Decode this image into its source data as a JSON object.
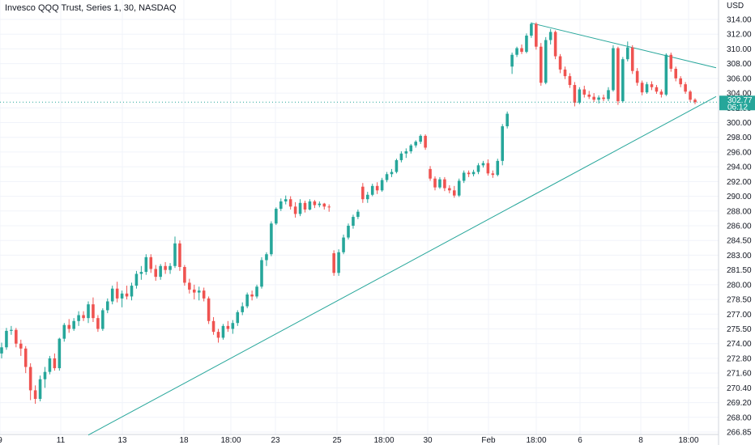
{
  "chart_data": {
    "type": "candlestick",
    "title": "Invesco QQQ Trust, Series 1, 30, NASDAQ",
    "currency": "USD",
    "colors": {
      "up": "#26a69a",
      "down": "#ef5350",
      "trendline": "#26a69a",
      "price_badge": "#26a69a",
      "grid": "#f0f3fa"
    },
    "last_price": {
      "value": "302.77",
      "countdown": "06:12",
      "price": 302.77
    },
    "x_ticks": [
      "9",
      "11",
      "13",
      "18",
      "18:00",
      "23",
      "25",
      "18:00",
      "30",
      "Feb",
      "18:00",
      "6",
      "8",
      "18:00"
    ],
    "y_ticks": [
      "266.85",
      "268.00",
      "269.20",
      "270.40",
      "271.60",
      "272.80",
      "274.00",
      "275.50",
      "277.00",
      "278.50",
      "280.00",
      "281.50",
      "283.00",
      "284.50",
      "286.00",
      "288.00",
      "290.00",
      "292.00",
      "294.00",
      "296.00",
      "298.00",
      "300.00",
      "302.00",
      "304.00",
      "306.00",
      "308.00",
      "310.00",
      "312.00",
      "314.00"
    ],
    "y_tick_values": [
      266.85,
      268.0,
      269.2,
      270.4,
      271.6,
      272.8,
      274.0,
      275.5,
      277.0,
      278.5,
      280.0,
      281.5,
      283.0,
      284.5,
      286.0,
      288.0,
      290.0,
      292.0,
      294.0,
      296.0,
      298.0,
      300.0,
      302.0,
      304.0,
      306.0,
      308.0,
      310.0,
      312.0,
      314.0
    ],
    "trendlines": [
      {
        "name": "support",
        "start": {
          "bar": 18,
          "price": 266.6
        },
        "end": {
          "bar": 148,
          "price": 303.4
        }
      },
      {
        "name": "resistance",
        "start": {
          "bar": 110,
          "price": 313.5
        },
        "end": {
          "bar": 148,
          "price": 307.5
        }
      }
    ],
    "candles": [
      [
        273.2,
        274.1,
        272.8,
        273.7
      ],
      [
        273.7,
        275.6,
        273.5,
        275.3
      ],
      [
        275.3,
        275.8,
        274.9,
        275.4
      ],
      [
        275.4,
        275.6,
        273.7,
        274.0
      ],
      [
        274.0,
        274.4,
        273.0,
        273.6
      ],
      [
        273.6,
        273.8,
        271.6,
        272.1
      ],
      [
        272.1,
        272.4,
        269.4,
        270.2
      ],
      [
        270.2,
        270.6,
        269.1,
        269.5
      ],
      [
        269.5,
        271.4,
        269.3,
        271.1
      ],
      [
        271.1,
        272.1,
        270.4,
        271.7
      ],
      [
        271.7,
        273.0,
        271.5,
        272.8
      ],
      [
        272.8,
        273.2,
        271.8,
        272.0
      ],
      [
        272.0,
        274.6,
        271.8,
        274.5
      ],
      [
        274.5,
        276.1,
        274.2,
        275.9
      ],
      [
        275.9,
        276.5,
        275.1,
        275.5
      ],
      [
        275.5,
        276.6,
        275.3,
        276.3
      ],
      [
        276.3,
        277.3,
        275.8,
        276.9
      ],
      [
        276.9,
        277.3,
        276.3,
        276.6
      ],
      [
        276.6,
        278.3,
        276.1,
        278.0
      ],
      [
        278.0,
        278.7,
        276.2,
        276.6
      ],
      [
        276.6,
        276.9,
        275.2,
        275.5
      ],
      [
        275.5,
        277.6,
        275.3,
        277.4
      ],
      [
        277.4,
        278.6,
        277.1,
        278.3
      ],
      [
        278.3,
        279.9,
        278.0,
        279.6
      ],
      [
        279.6,
        280.3,
        278.2,
        278.6
      ],
      [
        278.6,
        279.4,
        277.7,
        279.1
      ],
      [
        279.1,
        279.9,
        278.5,
        278.8
      ],
      [
        278.8,
        280.2,
        278.4,
        279.9
      ],
      [
        279.9,
        281.4,
        279.6,
        281.1
      ],
      [
        281.1,
        281.9,
        280.5,
        281.3
      ],
      [
        281.3,
        283.1,
        281.0,
        282.8
      ],
      [
        282.8,
        283.1,
        281.2,
        281.6
      ],
      [
        281.6,
        282.0,
        280.4,
        280.8
      ],
      [
        280.8,
        282.1,
        280.5,
        281.9
      ],
      [
        281.9,
        282.3,
        281.1,
        281.5
      ],
      [
        281.5,
        282.2,
        281.1,
        281.9
      ],
      [
        281.9,
        284.9,
        281.7,
        284.2
      ],
      [
        284.2,
        284.5,
        281.4,
        281.8
      ],
      [
        281.8,
        282.0,
        279.9,
        280.2
      ],
      [
        280.2,
        280.6,
        279.1,
        279.5
      ],
      [
        279.5,
        280.0,
        278.5,
        279.2
      ],
      [
        279.2,
        279.8,
        278.4,
        279.4
      ],
      [
        279.4,
        279.7,
        278.3,
        278.6
      ],
      [
        278.6,
        278.8,
        276.0,
        276.3
      ],
      [
        276.3,
        276.7,
        274.9,
        275.2
      ],
      [
        275.2,
        275.5,
        274.1,
        274.6
      ],
      [
        274.6,
        276.0,
        274.4,
        275.8
      ],
      [
        275.8,
        276.3,
        275.2,
        275.5
      ],
      [
        275.5,
        276.4,
        275.0,
        276.1
      ],
      [
        276.1,
        277.4,
        275.8,
        277.2
      ],
      [
        277.2,
        278.2,
        276.9,
        277.8
      ],
      [
        277.8,
        279.2,
        277.6,
        279.0
      ],
      [
        279.0,
        279.4,
        278.4,
        278.8
      ],
      [
        278.8,
        280.0,
        278.6,
        279.8
      ],
      [
        279.8,
        282.8,
        279.6,
        282.5
      ],
      [
        282.5,
        283.3,
        281.9,
        283.1
      ],
      [
        283.1,
        286.6,
        282.9,
        286.3
      ],
      [
        286.3,
        288.5,
        286.1,
        288.3
      ],
      [
        288.3,
        289.7,
        288.0,
        289.3
      ],
      [
        289.3,
        290.1,
        288.9,
        289.6
      ],
      [
        289.6,
        290.0,
        288.2,
        288.6
      ],
      [
        288.6,
        289.2,
        287.1,
        287.6
      ],
      [
        287.6,
        289.6,
        287.3,
        289.1
      ],
      [
        289.1,
        289.4,
        287.8,
        288.2
      ],
      [
        288.2,
        289.6,
        288.1,
        289.3
      ],
      [
        289.3,
        289.5,
        288.4,
        288.8
      ],
      [
        288.8,
        289.3,
        288.5,
        289.0
      ],
      [
        289.0,
        289.1,
        288.2,
        288.6
      ],
      [
        288.6,
        288.9,
        287.9,
        288.5
      ],
      [
        283.2,
        283.5,
        280.9,
        281.2
      ],
      [
        281.2,
        283.6,
        280.9,
        283.3
      ],
      [
        283.3,
        285.1,
        283.1,
        284.8
      ],
      [
        284.8,
        286.3,
        284.6,
        286.0
      ],
      [
        286.0,
        287.5,
        285.7,
        287.2
      ],
      [
        287.2,
        288.2,
        286.9,
        287.9
      ],
      [
        291.3,
        291.8,
        289.1,
        289.6
      ],
      [
        289.6,
        290.6,
        289.1,
        290.2
      ],
      [
        290.2,
        291.7,
        290.0,
        291.4
      ],
      [
        291.4,
        291.9,
        290.3,
        290.8
      ],
      [
        290.8,
        292.5,
        290.6,
        292.2
      ],
      [
        292.2,
        293.3,
        291.9,
        293.0
      ],
      [
        293.0,
        293.7,
        292.6,
        293.3
      ],
      [
        293.3,
        295.1,
        293.1,
        294.9
      ],
      [
        294.9,
        296.1,
        294.6,
        295.8
      ],
      [
        295.8,
        296.5,
        295.2,
        296.1
      ],
      [
        296.1,
        297.1,
        295.8,
        296.9
      ],
      [
        296.9,
        297.6,
        296.6,
        297.4
      ],
      [
        297.4,
        298.4,
        297.1,
        298.2
      ],
      [
        298.2,
        298.4,
        296.3,
        296.6
      ],
      [
        293.7,
        294.1,
        292.1,
        292.4
      ],
      [
        292.4,
        292.7,
        290.8,
        291.2
      ],
      [
        291.2,
        292.6,
        291.0,
        292.3
      ],
      [
        292.3,
        292.6,
        290.7,
        291.1
      ],
      [
        291.1,
        291.5,
        290.4,
        290.8
      ],
      [
        290.8,
        291.4,
        289.8,
        290.1
      ],
      [
        290.1,
        292.4,
        289.9,
        292.1
      ],
      [
        292.1,
        293.5,
        291.8,
        293.2
      ],
      [
        293.2,
        293.5,
        292.6,
        293.0
      ],
      [
        293.0,
        293.6,
        292.7,
        293.3
      ],
      [
        293.3,
        294.5,
        293.0,
        294.2
      ],
      [
        294.2,
        294.8,
        293.9,
        294.5
      ],
      [
        294.5,
        295.0,
        292.8,
        293.1
      ],
      [
        293.1,
        293.5,
        292.5,
        292.9
      ],
      [
        292.9,
        295.1,
        292.7,
        294.8
      ],
      [
        294.8,
        299.8,
        294.2,
        299.5
      ],
      [
        299.5,
        301.5,
        299.2,
        301.2
      ],
      [
        307.6,
        309.5,
        306.6,
        309.2
      ],
      [
        309.2,
        310.3,
        308.9,
        310.1
      ],
      [
        310.1,
        310.6,
        309.3,
        309.6
      ],
      [
        309.6,
        312.1,
        309.4,
        311.8
      ],
      [
        311.8,
        313.6,
        311.5,
        313.4
      ],
      [
        313.4,
        313.6,
        309.9,
        310.3
      ],
      [
        310.3,
        310.8,
        305.0,
        305.4
      ],
      [
        305.4,
        311.6,
        305.2,
        311.2
      ],
      [
        311.2,
        312.7,
        310.6,
        312.3
      ],
      [
        312.3,
        312.5,
        308.6,
        309.0
      ],
      [
        309.0,
        309.3,
        306.7,
        307.2
      ],
      [
        307.2,
        307.6,
        305.9,
        306.3
      ],
      [
        306.3,
        306.7,
        304.7,
        305.1
      ],
      [
        305.1,
        305.5,
        302.2,
        302.7
      ],
      [
        302.7,
        304.8,
        302.5,
        304.5
      ],
      [
        304.5,
        305.0,
        303.4,
        303.8
      ],
      [
        303.8,
        304.3,
        303.2,
        303.5
      ],
      [
        303.5,
        304.0,
        302.8,
        303.1
      ],
      [
        303.1,
        303.7,
        302.6,
        303.4
      ],
      [
        303.4,
        303.8,
        302.9,
        303.2
      ],
      [
        303.2,
        304.8,
        302.9,
        304.4
      ],
      [
        304.4,
        310.5,
        304.2,
        310.1
      ],
      [
        310.1,
        310.3,
        302.4,
        302.9
      ],
      [
        302.9,
        308.9,
        302.7,
        308.6
      ],
      [
        308.6,
        311.0,
        308.3,
        310.2
      ],
      [
        310.2,
        310.5,
        306.6,
        307.0
      ],
      [
        307.0,
        307.4,
        305.0,
        305.4
      ],
      [
        305.4,
        305.7,
        303.7,
        304.1
      ],
      [
        304.1,
        305.5,
        303.9,
        305.2
      ],
      [
        305.2,
        305.6,
        304.4,
        304.8
      ],
      [
        304.8,
        305.1,
        303.9,
        304.2
      ],
      [
        304.2,
        304.5,
        303.4,
        303.8
      ],
      [
        303.8,
        309.4,
        303.6,
        309.2
      ],
      [
        309.2,
        309.5,
        306.9,
        307.3
      ],
      [
        307.3,
        307.6,
        305.6,
        306.0
      ],
      [
        306.0,
        306.3,
        304.8,
        305.2
      ],
      [
        305.2,
        305.5,
        303.9,
        304.2
      ],
      [
        304.2,
        304.4,
        302.8,
        303.1
      ],
      [
        303.1,
        303.3,
        302.5,
        302.77
      ]
    ]
  }
}
